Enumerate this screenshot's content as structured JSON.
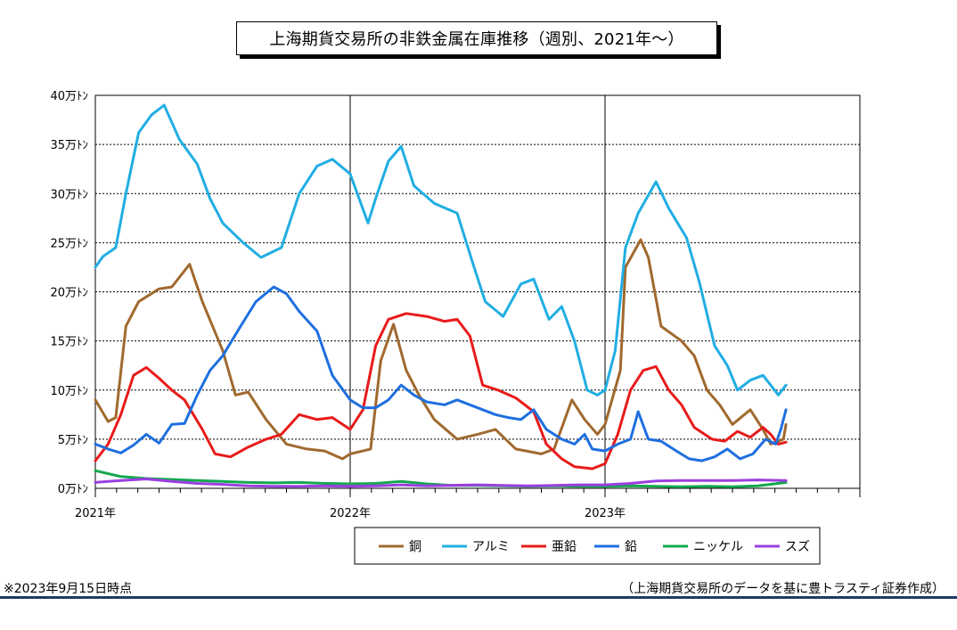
{
  "chart_data": {
    "type": "line",
    "title": "上海期貨交易所の非鉄金属在庫推移（週別、2021年～）",
    "y_unit_label": "トン",
    "ylim": [
      0,
      400000
    ],
    "y_ticks": [
      {
        "value": 0,
        "label": "0万ﾄﾝ"
      },
      {
        "value": 50000,
        "label": "5万ﾄﾝ"
      },
      {
        "value": 100000,
        "label": "10万ﾄﾝ"
      },
      {
        "value": 150000,
        "label": "15万ﾄﾝ"
      },
      {
        "value": 200000,
        "label": "20万ﾄﾝ"
      },
      {
        "value": 250000,
        "label": "25万ﾄﾝ"
      },
      {
        "value": 300000,
        "label": "30万ﾄﾝ"
      },
      {
        "value": 350000,
        "label": "35万ﾄﾝ"
      },
      {
        "value": 400000,
        "label": "40万ﾄﾝ"
      }
    ],
    "xlim": [
      2021.0,
      2024.0
    ],
    "x_ticks": [
      {
        "value": 2021.0,
        "label": "2021年"
      },
      {
        "value": 2022.0,
        "label": "2022年"
      },
      {
        "value": 2023.0,
        "label": "2023年"
      }
    ],
    "grid": "horizontal dashed",
    "legend_position": "bottom",
    "series": [
      {
        "name": "銅",
        "color": "#A0692E",
        "points": [
          [
            2021.0,
            90000
          ],
          [
            2021.05,
            68000
          ],
          [
            2021.08,
            72000
          ],
          [
            2021.12,
            165000
          ],
          [
            2021.17,
            190000
          ],
          [
            2021.25,
            203000
          ],
          [
            2021.3,
            205000
          ],
          [
            2021.37,
            228000
          ],
          [
            2021.42,
            190000
          ],
          [
            2021.5,
            140000
          ],
          [
            2021.55,
            95000
          ],
          [
            2021.6,
            98000
          ],
          [
            2021.67,
            70000
          ],
          [
            2021.75,
            45000
          ],
          [
            2021.83,
            40000
          ],
          [
            2021.9,
            38000
          ],
          [
            2021.97,
            30000
          ],
          [
            2022.0,
            35000
          ],
          [
            2022.08,
            40000
          ],
          [
            2022.12,
            130000
          ],
          [
            2022.17,
            167000
          ],
          [
            2022.22,
            120000
          ],
          [
            2022.27,
            95000
          ],
          [
            2022.33,
            70000
          ],
          [
            2022.42,
            50000
          ],
          [
            2022.5,
            55000
          ],
          [
            2022.57,
            60000
          ],
          [
            2022.65,
            40000
          ],
          [
            2022.75,
            35000
          ],
          [
            2022.8,
            40000
          ],
          [
            2022.87,
            90000
          ],
          [
            2022.92,
            70000
          ],
          [
            2022.97,
            55000
          ],
          [
            2023.0,
            65000
          ],
          [
            2023.06,
            120000
          ],
          [
            2023.08,
            225000
          ],
          [
            2023.14,
            253000
          ],
          [
            2023.17,
            235000
          ],
          [
            2023.22,
            165000
          ],
          [
            2023.3,
            150000
          ],
          [
            2023.35,
            135000
          ],
          [
            2023.4,
            100000
          ],
          [
            2023.45,
            85000
          ],
          [
            2023.5,
            65000
          ],
          [
            2023.57,
            80000
          ],
          [
            2023.62,
            60000
          ],
          [
            2023.65,
            45000
          ],
          [
            2023.7,
            50000
          ],
          [
            2023.71,
            65000
          ]
        ]
      },
      {
        "name": "アルミ",
        "color": "#21AEE3",
        "points": [
          [
            2021.0,
            225000
          ],
          [
            2021.03,
            236000
          ],
          [
            2021.08,
            245000
          ],
          [
            2021.12,
            300000
          ],
          [
            2021.17,
            362000
          ],
          [
            2021.22,
            380000
          ],
          [
            2021.27,
            390000
          ],
          [
            2021.33,
            355000
          ],
          [
            2021.4,
            330000
          ],
          [
            2021.45,
            295000
          ],
          [
            2021.5,
            270000
          ],
          [
            2021.58,
            250000
          ],
          [
            2021.65,
            235000
          ],
          [
            2021.73,
            245000
          ],
          [
            2021.8,
            300000
          ],
          [
            2021.87,
            328000
          ],
          [
            2021.93,
            335000
          ],
          [
            2022.0,
            320000
          ],
          [
            2022.07,
            270000
          ],
          [
            2022.1,
            295000
          ],
          [
            2022.15,
            333000
          ],
          [
            2022.2,
            348000
          ],
          [
            2022.25,
            308000
          ],
          [
            2022.33,
            290000
          ],
          [
            2022.42,
            280000
          ],
          [
            2022.48,
            230000
          ],
          [
            2022.53,
            190000
          ],
          [
            2022.6,
            175000
          ],
          [
            2022.67,
            208000
          ],
          [
            2022.72,
            213000
          ],
          [
            2022.78,
            172000
          ],
          [
            2022.83,
            185000
          ],
          [
            2022.88,
            150000
          ],
          [
            2022.93,
            100000
          ],
          [
            2022.97,
            95000
          ],
          [
            2023.0,
            100000
          ],
          [
            2023.04,
            140000
          ],
          [
            2023.08,
            245000
          ],
          [
            2023.13,
            280000
          ],
          [
            2023.2,
            312000
          ],
          [
            2023.25,
            285000
          ],
          [
            2023.32,
            255000
          ],
          [
            2023.37,
            210000
          ],
          [
            2023.43,
            145000
          ],
          [
            2023.48,
            125000
          ],
          [
            2023.52,
            100000
          ],
          [
            2023.57,
            110000
          ],
          [
            2023.62,
            115000
          ],
          [
            2023.65,
            105000
          ],
          [
            2023.68,
            95000
          ],
          [
            2023.71,
            105000
          ]
        ]
      },
      {
        "name": "亜鉛",
        "color": "#E81B1B",
        "points": [
          [
            2021.0,
            28000
          ],
          [
            2021.05,
            45000
          ],
          [
            2021.1,
            75000
          ],
          [
            2021.15,
            115000
          ],
          [
            2021.2,
            123000
          ],
          [
            2021.25,
            112000
          ],
          [
            2021.3,
            100000
          ],
          [
            2021.35,
            90000
          ],
          [
            2021.42,
            60000
          ],
          [
            2021.47,
            35000
          ],
          [
            2021.53,
            32000
          ],
          [
            2021.6,
            42000
          ],
          [
            2021.67,
            50000
          ],
          [
            2021.73,
            55000
          ],
          [
            2021.8,
            75000
          ],
          [
            2021.87,
            70000
          ],
          [
            2021.93,
            72000
          ],
          [
            2022.0,
            60000
          ],
          [
            2022.05,
            80000
          ],
          [
            2022.1,
            145000
          ],
          [
            2022.15,
            172000
          ],
          [
            2022.22,
            178000
          ],
          [
            2022.3,
            175000
          ],
          [
            2022.37,
            170000
          ],
          [
            2022.42,
            172000
          ],
          [
            2022.47,
            155000
          ],
          [
            2022.52,
            105000
          ],
          [
            2022.58,
            100000
          ],
          [
            2022.65,
            92000
          ],
          [
            2022.72,
            78000
          ],
          [
            2022.77,
            45000
          ],
          [
            2022.83,
            30000
          ],
          [
            2022.88,
            22000
          ],
          [
            2022.95,
            20000
          ],
          [
            2023.0,
            25000
          ],
          [
            2023.05,
            55000
          ],
          [
            2023.1,
            100000
          ],
          [
            2023.15,
            120000
          ],
          [
            2023.2,
            124000
          ],
          [
            2023.25,
            100000
          ],
          [
            2023.3,
            85000
          ],
          [
            2023.35,
            62000
          ],
          [
            2023.42,
            50000
          ],
          [
            2023.47,
            48000
          ],
          [
            2023.52,
            58000
          ],
          [
            2023.57,
            52000
          ],
          [
            2023.62,
            62000
          ],
          [
            2023.65,
            55000
          ],
          [
            2023.68,
            45000
          ],
          [
            2023.71,
            47000
          ]
        ]
      },
      {
        "name": "鉛",
        "color": "#1E6FE0",
        "points": [
          [
            2021.0,
            45000
          ],
          [
            2021.05,
            40000
          ],
          [
            2021.1,
            36000
          ],
          [
            2021.15,
            44000
          ],
          [
            2021.2,
            55000
          ],
          [
            2021.25,
            46000
          ],
          [
            2021.3,
            65000
          ],
          [
            2021.35,
            66000
          ],
          [
            2021.4,
            95000
          ],
          [
            2021.45,
            120000
          ],
          [
            2021.5,
            135000
          ],
          [
            2021.57,
            165000
          ],
          [
            2021.63,
            190000
          ],
          [
            2021.7,
            205000
          ],
          [
            2021.75,
            198000
          ],
          [
            2021.8,
            180000
          ],
          [
            2021.87,
            160000
          ],
          [
            2021.93,
            115000
          ],
          [
            2022.0,
            90000
          ],
          [
            2022.05,
            82000
          ],
          [
            2022.1,
            82000
          ],
          [
            2022.15,
            90000
          ],
          [
            2022.2,
            105000
          ],
          [
            2022.25,
            95000
          ],
          [
            2022.3,
            88000
          ],
          [
            2022.37,
            85000
          ],
          [
            2022.42,
            90000
          ],
          [
            2022.47,
            85000
          ],
          [
            2022.52,
            80000
          ],
          [
            2022.57,
            75000
          ],
          [
            2022.62,
            72000
          ],
          [
            2022.67,
            70000
          ],
          [
            2022.72,
            80000
          ],
          [
            2022.77,
            60000
          ],
          [
            2022.83,
            50000
          ],
          [
            2022.88,
            45000
          ],
          [
            2022.92,
            55000
          ],
          [
            2022.95,
            40000
          ],
          [
            2023.0,
            38000
          ],
          [
            2023.05,
            45000
          ],
          [
            2023.1,
            50000
          ],
          [
            2023.13,
            78000
          ],
          [
            2023.17,
            50000
          ],
          [
            2023.22,
            48000
          ],
          [
            2023.28,
            38000
          ],
          [
            2023.33,
            30000
          ],
          [
            2023.38,
            28000
          ],
          [
            2023.43,
            32000
          ],
          [
            2023.48,
            40000
          ],
          [
            2023.53,
            30000
          ],
          [
            2023.58,
            35000
          ],
          [
            2023.63,
            50000
          ],
          [
            2023.67,
            45000
          ],
          [
            2023.69,
            60000
          ],
          [
            2023.71,
            80000
          ]
        ]
      },
      {
        "name": "ニッケル",
        "color": "#14A84F",
        "points": [
          [
            2021.0,
            18000
          ],
          [
            2021.1,
            12000
          ],
          [
            2021.2,
            10000
          ],
          [
            2021.3,
            9000
          ],
          [
            2021.4,
            8000
          ],
          [
            2021.5,
            7000
          ],
          [
            2021.6,
            6000
          ],
          [
            2021.7,
            5500
          ],
          [
            2021.8,
            6000
          ],
          [
            2021.9,
            5000
          ],
          [
            2022.0,
            4500
          ],
          [
            2022.1,
            5000
          ],
          [
            2022.2,
            7000
          ],
          [
            2022.3,
            4500
          ],
          [
            2022.4,
            3000
          ],
          [
            2022.5,
            3000
          ],
          [
            2022.6,
            2500
          ],
          [
            2022.7,
            2000
          ],
          [
            2022.8,
            2500
          ],
          [
            2022.9,
            2000
          ],
          [
            2023.0,
            2000
          ],
          [
            2023.1,
            2500
          ],
          [
            2023.2,
            2000
          ],
          [
            2023.3,
            1500
          ],
          [
            2023.4,
            2000
          ],
          [
            2023.5,
            1500
          ],
          [
            2023.6,
            2500
          ],
          [
            2023.71,
            6000
          ]
        ]
      },
      {
        "name": "スズ",
        "color": "#9B3FE0",
        "points": [
          [
            2021.0,
            6000
          ],
          [
            2021.1,
            8000
          ],
          [
            2021.2,
            9500
          ],
          [
            2021.3,
            7000
          ],
          [
            2021.4,
            5000
          ],
          [
            2021.5,
            4000
          ],
          [
            2021.6,
            2500
          ],
          [
            2021.7,
            2000
          ],
          [
            2021.8,
            2000
          ],
          [
            2021.9,
            2500
          ],
          [
            2022.0,
            2000
          ],
          [
            2022.1,
            2500
          ],
          [
            2022.2,
            3500
          ],
          [
            2022.3,
            2500
          ],
          [
            2022.4,
            3000
          ],
          [
            2022.5,
            3500
          ],
          [
            2022.6,
            3000
          ],
          [
            2022.7,
            2500
          ],
          [
            2022.8,
            3000
          ],
          [
            2022.9,
            3500
          ],
          [
            2023.0,
            3500
          ],
          [
            2023.1,
            5000
          ],
          [
            2023.2,
            7500
          ],
          [
            2023.3,
            8000
          ],
          [
            2023.4,
            8000
          ],
          [
            2023.5,
            8000
          ],
          [
            2023.6,
            8500
          ],
          [
            2023.71,
            8000
          ]
        ]
      }
    ]
  },
  "footnotes": {
    "left": "※2023年9月15日時点",
    "right": "（上海期貨交易所のデータを基に豊トラスティ証券作成）"
  }
}
